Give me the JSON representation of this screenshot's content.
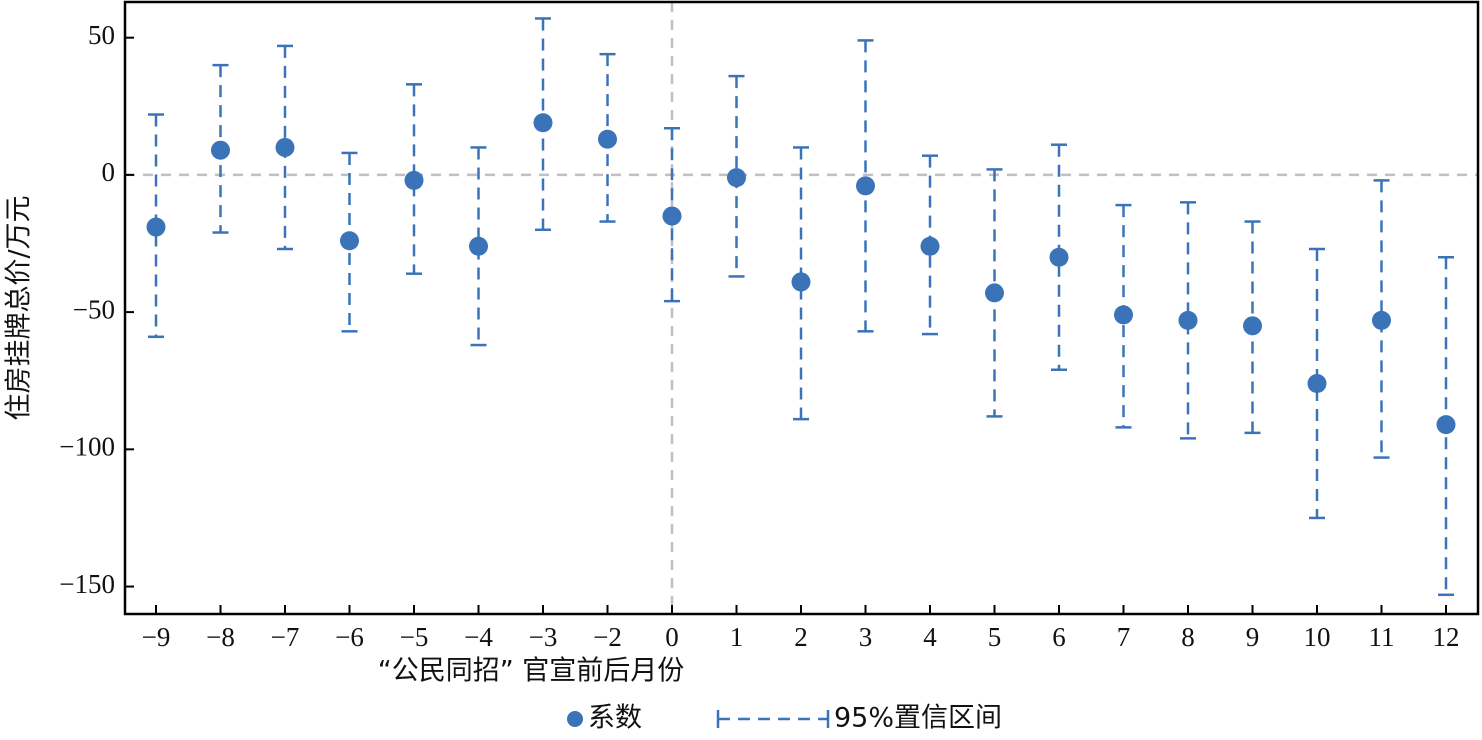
{
  "chart_data": {
    "type": "scatter",
    "subtype": "errorbar",
    "xlabel": "“公民同招” 官宣前后月份",
    "ylabel": "住房挂牌总价/万元",
    "categories": [
      "−9",
      "−8",
      "−7",
      "−6",
      "−5",
      "−4",
      "−3",
      "−2",
      "0",
      "1",
      "2",
      "3",
      "4",
      "5",
      "6",
      "7",
      "8",
      "9",
      "10",
      "11",
      "12"
    ],
    "yticks": [
      50,
      0,
      -50,
      -100,
      -150
    ],
    "ytick_labels": [
      "50",
      "0",
      "−50",
      "−100",
      "−150"
    ],
    "ylim": [
      -160,
      63
    ],
    "reference_lines": {
      "horizontal_y": 0,
      "vertical_at_category": "0"
    },
    "series": [
      {
        "name": "系数",
        "values": [
          -19,
          9,
          10,
          -24,
          -2,
          -26,
          19,
          13,
          -15,
          -1,
          -39,
          -4,
          -26,
          -43,
          -30,
          -51,
          -53,
          -55,
          -76,
          -53,
          -91
        ]
      },
      {
        "name": "95%置信区间",
        "lower": [
          -59,
          -21,
          -27,
          -57,
          -36,
          -62,
          -20,
          -17,
          -46,
          -37,
          -89,
          -57,
          -58,
          -88,
          -71,
          -92,
          -96,
          -94,
          -125,
          -103,
          -153
        ],
        "upper": [
          22,
          40,
          47,
          8,
          33,
          10,
          57,
          44,
          17,
          36,
          10,
          49,
          7,
          2,
          11,
          -11,
          -10,
          -17,
          -27,
          -2,
          -30
        ]
      }
    ],
    "colors": {
      "series": "#3a73b8",
      "reference": "#c0c0c0",
      "axis": "#000000"
    },
    "legend_position": "bottom-center"
  }
}
